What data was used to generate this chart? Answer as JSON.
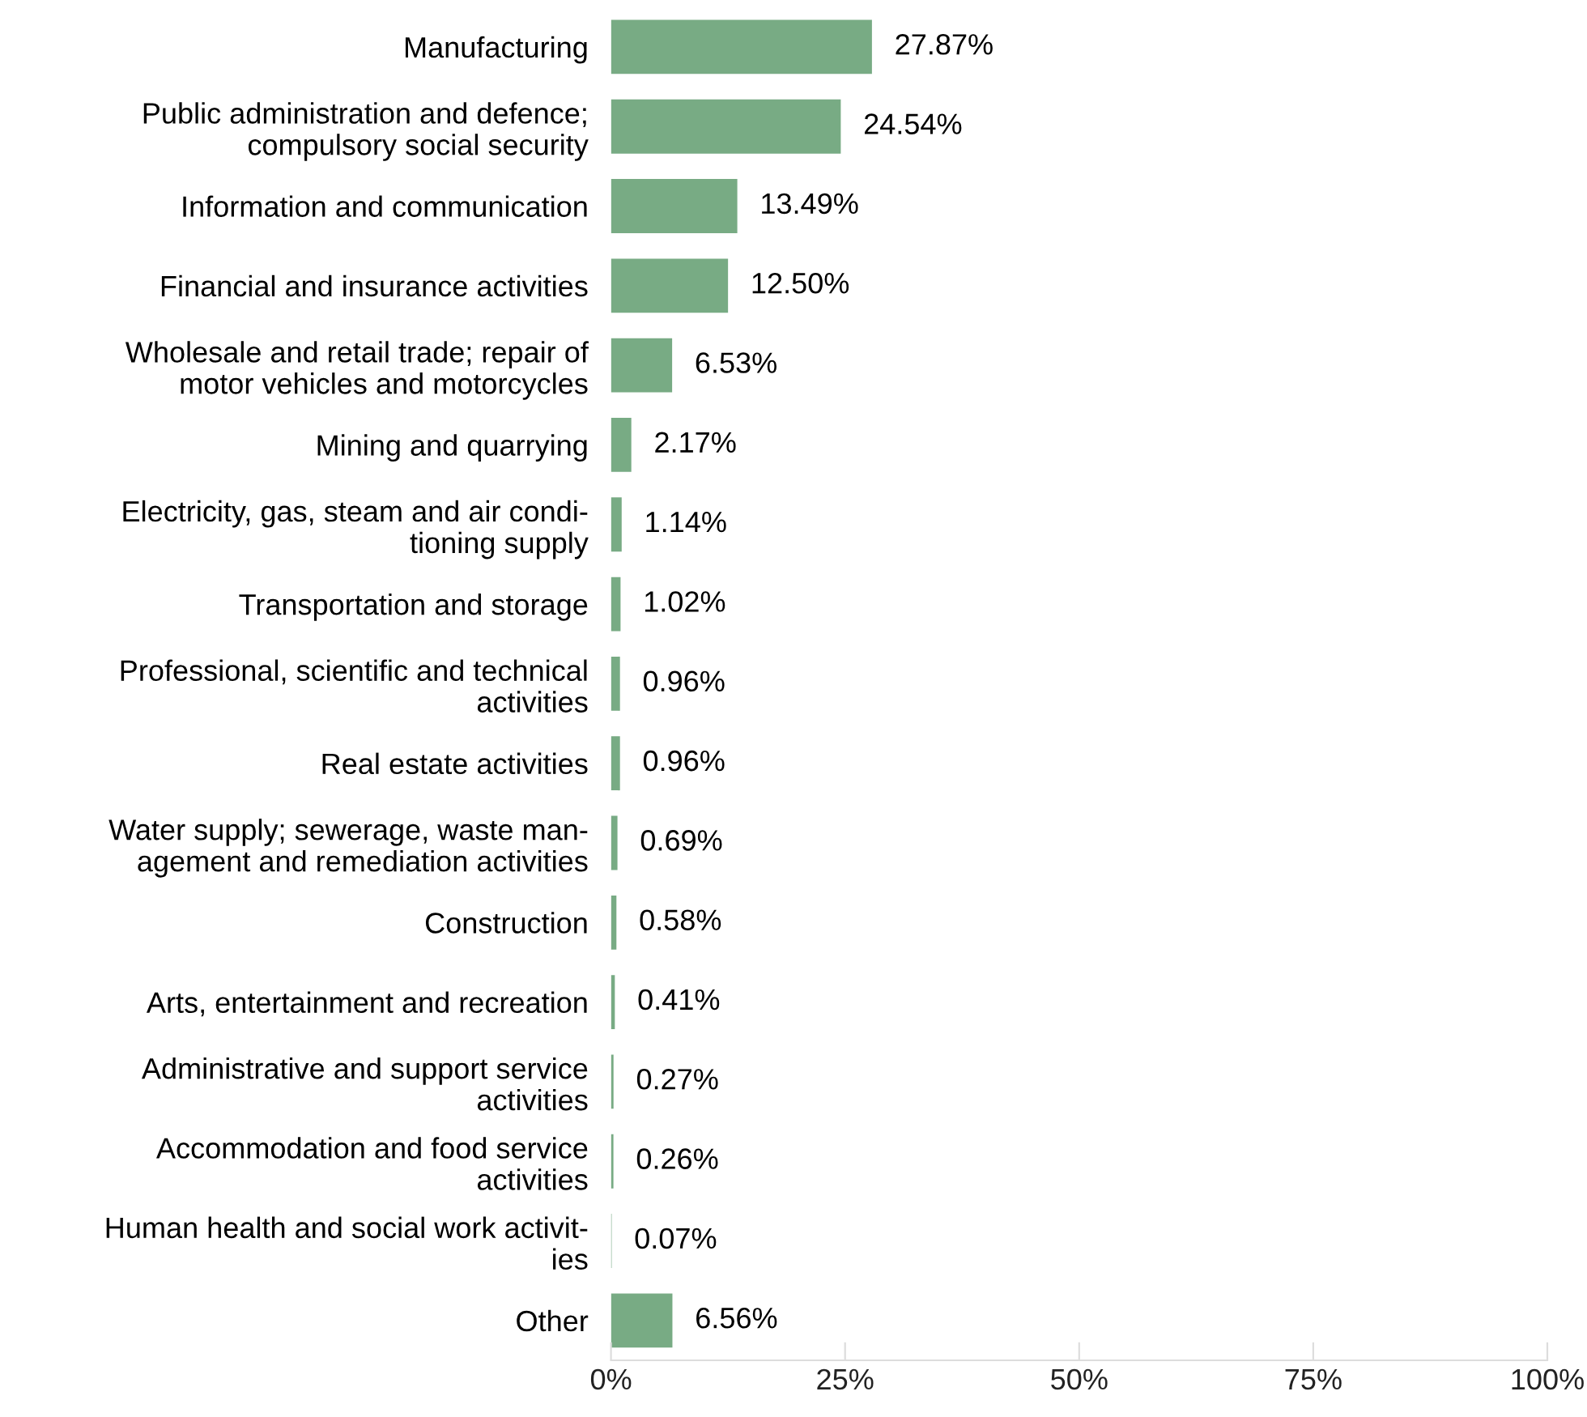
{
  "chart_data": {
    "type": "bar",
    "orientation": "horizontal",
    "categories": [
      "Manufacturing",
      "Public administration and defence;\ncompulsory social security",
      "Information and communication",
      "Financial and insurance activities",
      "Wholesale and retail trade; repair of\nmotor vehicles and motorcycles",
      "Mining and quarrying",
      "Electricity, gas, steam and air condi-\ntioning supply",
      "Transportation and storage",
      "Professional, scientific and technical\nactivities",
      "Real estate activities",
      "Water supply; sewerage, waste man-\nagement and remediation activities",
      "Construction",
      "Arts, entertainment and recreation",
      "Administrative and support service\nactivities",
      "Accommodation and food service\nactivities",
      "Human health and social work activit-\nies",
      "Other"
    ],
    "values": [
      27.87,
      24.54,
      13.49,
      12.5,
      6.53,
      2.17,
      1.14,
      1.02,
      0.96,
      0.96,
      0.69,
      0.58,
      0.41,
      0.27,
      0.26,
      0.07,
      6.56
    ],
    "value_labels": [
      "27.87%",
      "24.54%",
      "13.49%",
      "12.50%",
      "6.53%",
      "2.17%",
      "1.14%",
      "1.02%",
      "0.96%",
      "0.96%",
      "0.69%",
      "0.58%",
      "0.41%",
      "0.27%",
      "0.26%",
      "0.07%",
      "6.56%"
    ],
    "color": "#78ab84",
    "xlim": [
      0,
      100
    ],
    "xticks": [
      {
        "value": 0,
        "label": "0%"
      },
      {
        "value": 25,
        "label": "25%"
      },
      {
        "value": 50,
        "label": "50%"
      },
      {
        "value": 75,
        "label": "75%"
      },
      {
        "value": 100,
        "label": "100%"
      }
    ],
    "grid": false,
    "legend": false
  }
}
